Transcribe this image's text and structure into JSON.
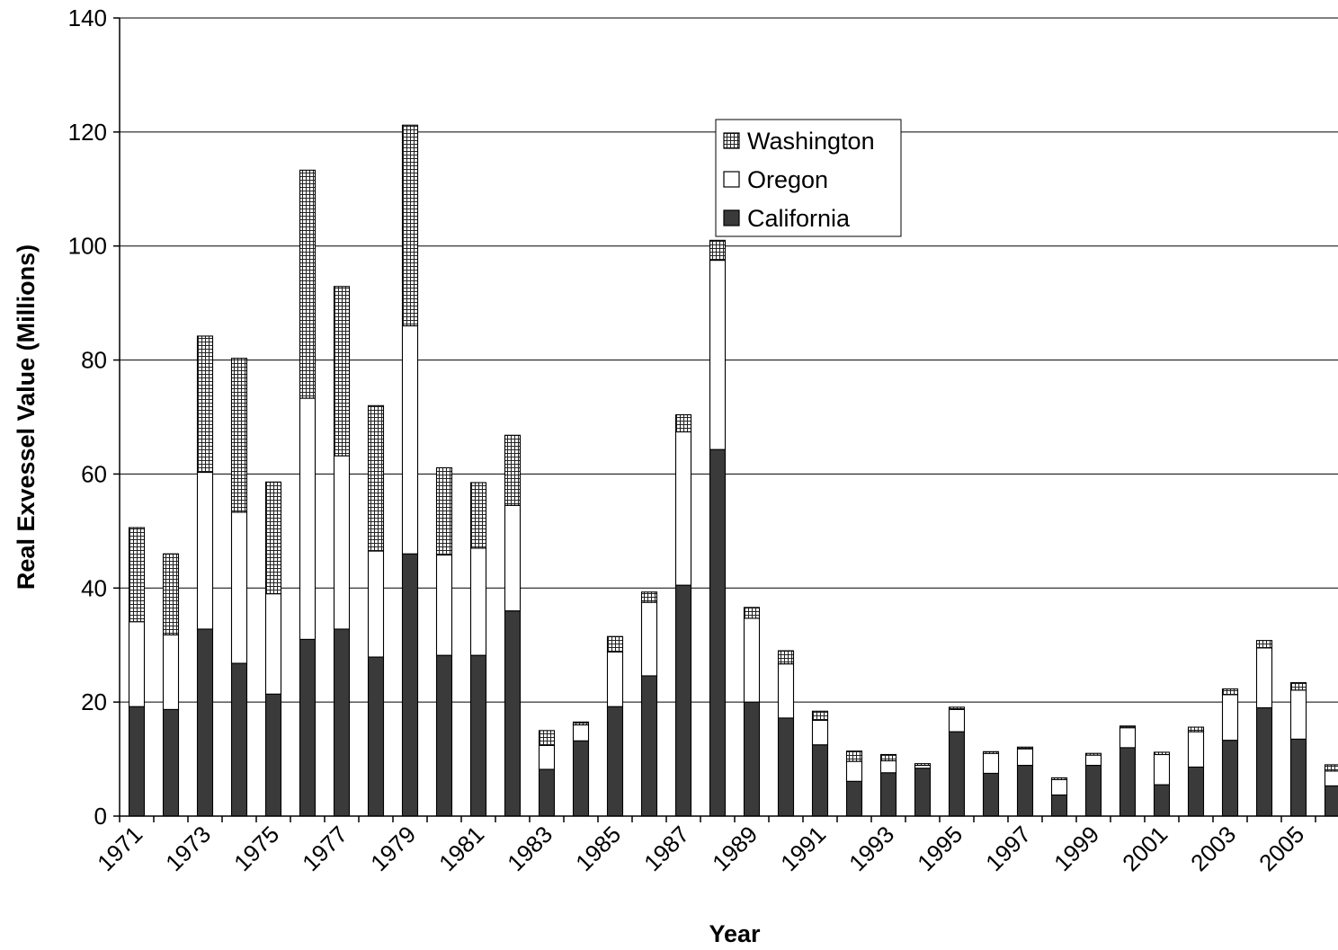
{
  "chart_data": {
    "type": "bar",
    "stacked": true,
    "categories": [
      "1971",
      "1972",
      "1973",
      "1974",
      "1975",
      "1976",
      "1977",
      "1978",
      "1979",
      "1980",
      "1981",
      "1982",
      "1983",
      "1984",
      "1985",
      "1986",
      "1987",
      "1988",
      "1989",
      "1990",
      "1991",
      "1992",
      "1993",
      "1994",
      "1995",
      "1996",
      "1997",
      "1998",
      "1999",
      "2000",
      "2001",
      "2002",
      "2003",
      "2004",
      "2005",
      "2006"
    ],
    "x_tick_labels": [
      "1971",
      "1973",
      "1975",
      "1977",
      "1979",
      "1981",
      "1983",
      "1985",
      "1987",
      "1989",
      "1991",
      "1993",
      "1995",
      "1997",
      "1999",
      "2001",
      "2003",
      "2005"
    ],
    "series": [
      {
        "name": "California",
        "pattern": "solid-dark",
        "color": "#3a3a3a",
        "values": [
          19.2,
          18.7,
          32.8,
          26.8,
          21.4,
          31.0,
          32.8,
          27.9,
          46.0,
          28.2,
          28.2,
          36.0,
          8.2,
          13.2,
          19.2,
          24.6,
          40.5,
          64.3,
          20.0,
          17.2,
          12.5,
          6.1,
          7.6,
          8.4,
          14.8,
          7.5,
          8.9,
          3.7,
          8.9,
          12.0,
          5.5,
          8.6,
          13.3,
          19.0,
          13.5,
          5.3
        ]
      },
      {
        "name": "Oregon",
        "pattern": "white",
        "color": "#ffffff",
        "values": [
          14.9,
          13.1,
          27.5,
          26.5,
          17.6,
          42.3,
          30.4,
          18.6,
          40.0,
          17.6,
          18.8,
          18.5,
          4.2,
          2.8,
          9.6,
          12.9,
          26.9,
          33.2,
          14.7,
          9.5,
          4.3,
          3.5,
          2.1,
          0.5,
          3.9,
          3.5,
          2.9,
          2.7,
          1.8,
          3.5,
          5.3,
          6.2,
          8.0,
          10.5,
          8.6,
          2.6
        ]
      },
      {
        "name": "Washington",
        "pattern": "grid-hatch",
        "color": "#ffffff",
        "values": [
          16.5,
          14.2,
          23.9,
          27.0,
          19.6,
          40.0,
          29.7,
          25.5,
          35.2,
          15.3,
          11.5,
          12.3,
          2.6,
          0.5,
          2.7,
          1.8,
          3.0,
          3.5,
          1.9,
          2.3,
          1.6,
          1.8,
          1.1,
          0.3,
          0.4,
          0.3,
          0.3,
          0.3,
          0.3,
          0.3,
          0.4,
          0.8,
          1.0,
          1.3,
          1.3,
          1.1
        ]
      }
    ],
    "title": "",
    "xlabel": "Year",
    "ylabel": "Real Exvessel Value (Millions)",
    "ylim": [
      0,
      140
    ],
    "y_ticks": [
      0,
      20,
      40,
      60,
      80,
      100,
      120,
      140
    ],
    "grid": "horizontal",
    "legend": {
      "placement": "upper-center",
      "order": [
        "Washington",
        "Oregon",
        "California"
      ]
    }
  }
}
